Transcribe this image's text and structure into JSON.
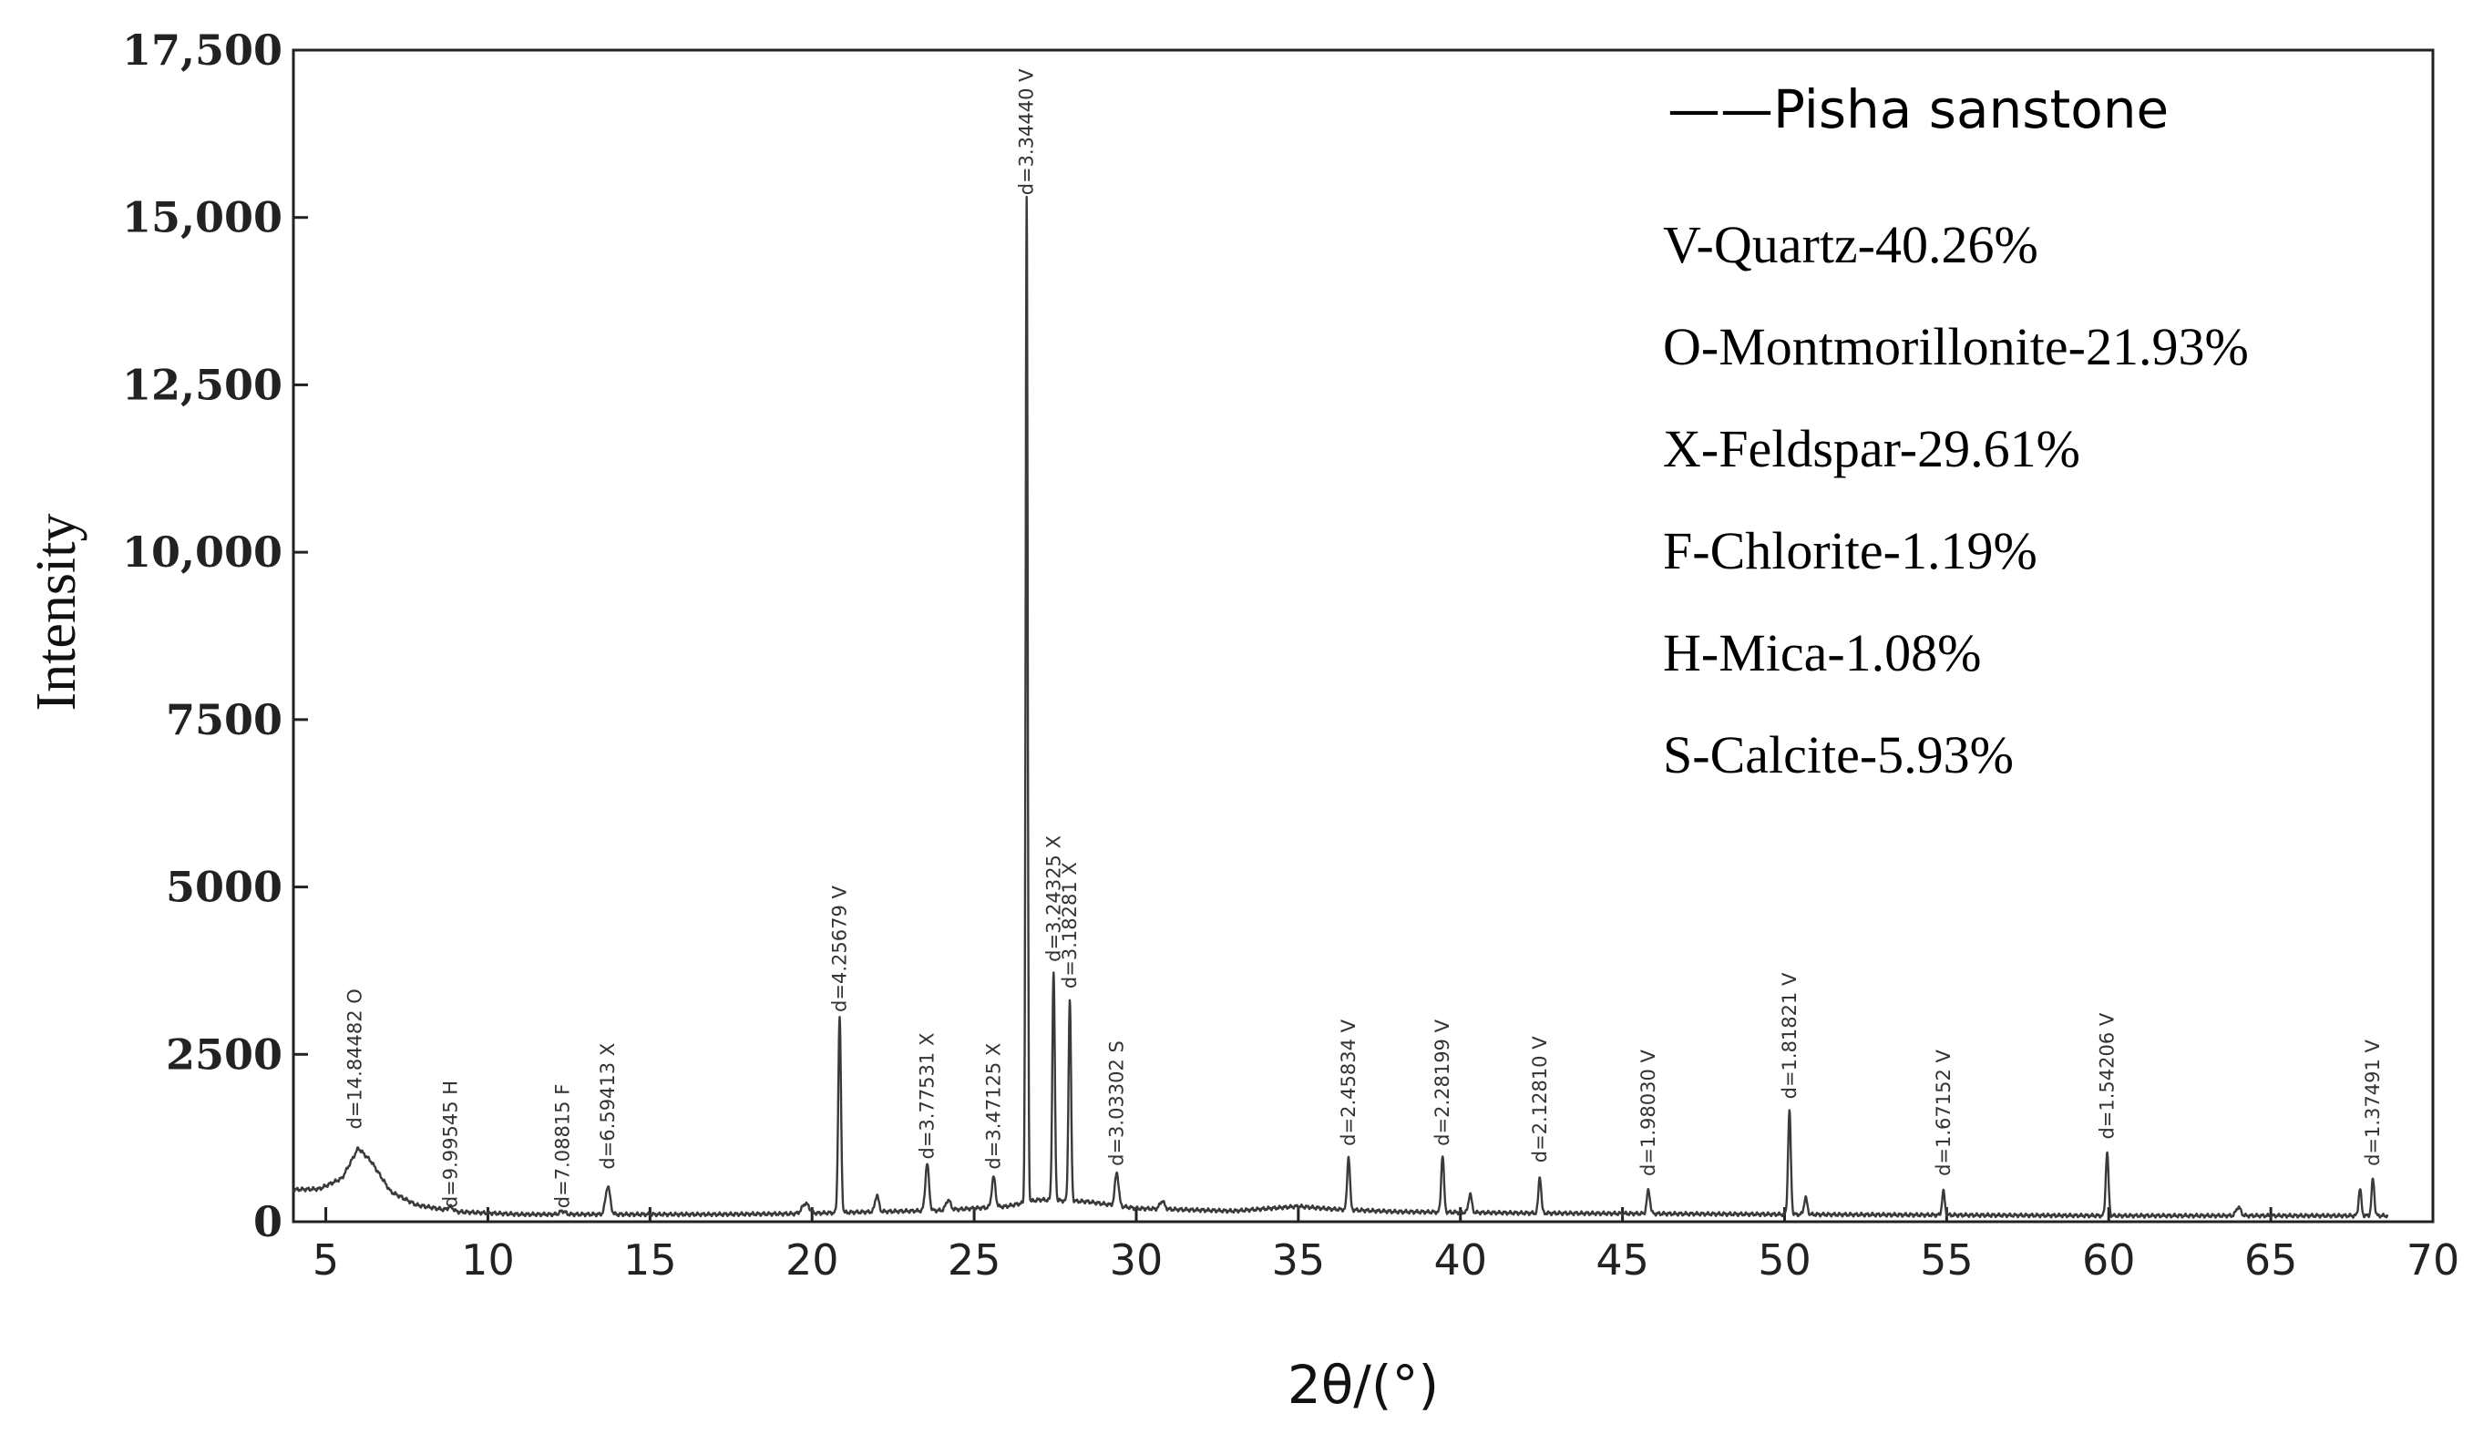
{
  "chart_data": {
    "type": "line",
    "xlabel": "2θ/(°)",
    "ylabel": "Intensity",
    "xlim": [
      4,
      70
    ],
    "ylim": [
      0,
      17500
    ],
    "x_ticks": [
      5,
      10,
      15,
      20,
      25,
      30,
      35,
      40,
      45,
      50,
      55,
      60,
      65,
      70
    ],
    "x_tick_labels": [
      "5",
      "10",
      "15",
      "20",
      "25",
      "30",
      "35",
      "40",
      "45",
      "50",
      "55",
      "60",
      "65",
      "70"
    ],
    "y_ticks": [
      0,
      2500,
      5000,
      7500,
      10000,
      12500,
      15000,
      17500
    ],
    "y_tick_labels": [
      "0",
      "2500",
      "5000",
      "7500",
      "10,000",
      "12,500",
      "15,000",
      "17,500"
    ],
    "series": [
      {
        "name": "Pisha sanstone",
        "color": "#3a3a3a",
        "baseline": [
          [
            4.0,
            480
          ],
          [
            4.8,
            490
          ],
          [
            5.5,
            650
          ],
          [
            6.0,
            1100
          ],
          [
            6.4,
            900
          ],
          [
            7.0,
            450
          ],
          [
            7.8,
            250
          ],
          [
            9.0,
            150
          ],
          [
            11.0,
            110
          ],
          [
            14.0,
            110
          ],
          [
            17.0,
            110
          ],
          [
            19.5,
            120
          ],
          [
            22.0,
            150
          ],
          [
            24.0,
            170
          ],
          [
            26.0,
            230
          ],
          [
            27.0,
            330
          ],
          [
            28.5,
            300
          ],
          [
            30.0,
            200
          ],
          [
            33.0,
            160
          ],
          [
            35.0,
            230
          ],
          [
            36.0,
            190
          ],
          [
            38.0,
            150
          ],
          [
            42.0,
            130
          ],
          [
            46.0,
            120
          ],
          [
            50.0,
            110
          ],
          [
            55.0,
            100
          ],
          [
            60.0,
            90
          ],
          [
            65.0,
            90
          ],
          [
            68.5,
            90
          ],
          [
            70.0,
            90
          ]
        ],
        "peaks": [
          {
            "x": 8.85,
            "y": 60,
            "w": 0.12
          },
          {
            "x": 12.3,
            "y": 50,
            "w": 0.12
          },
          {
            "x": 13.7,
            "y": 420,
            "w": 0.1
          },
          {
            "x": 19.8,
            "y": 150,
            "w": 0.15
          },
          {
            "x": 20.85,
            "y": 2900,
            "w": 0.06
          },
          {
            "x": 22.0,
            "y": 250,
            "w": 0.08
          },
          {
            "x": 23.55,
            "y": 700,
            "w": 0.08
          },
          {
            "x": 24.2,
            "y": 150,
            "w": 0.1
          },
          {
            "x": 25.6,
            "y": 450,
            "w": 0.08
          },
          {
            "x": 26.62,
            "y": 15000,
            "w": 0.045
          },
          {
            "x": 27.45,
            "y": 3400,
            "w": 0.055
          },
          {
            "x": 27.95,
            "y": 3000,
            "w": 0.055
          },
          {
            "x": 29.4,
            "y": 500,
            "w": 0.08
          },
          {
            "x": 30.8,
            "y": 120,
            "w": 0.1
          },
          {
            "x": 36.55,
            "y": 800,
            "w": 0.06
          },
          {
            "x": 39.45,
            "y": 850,
            "w": 0.06
          },
          {
            "x": 40.3,
            "y": 280,
            "w": 0.07
          },
          {
            "x": 42.45,
            "y": 550,
            "w": 0.06
          },
          {
            "x": 45.8,
            "y": 350,
            "w": 0.07
          },
          {
            "x": 50.15,
            "y": 1550,
            "w": 0.06
          },
          {
            "x": 50.65,
            "y": 250,
            "w": 0.07
          },
          {
            "x": 54.9,
            "y": 350,
            "w": 0.06
          },
          {
            "x": 59.95,
            "y": 950,
            "w": 0.06
          },
          {
            "x": 64.0,
            "y": 130,
            "w": 0.1
          },
          {
            "x": 67.75,
            "y": 400,
            "w": 0.06
          },
          {
            "x": 68.15,
            "y": 550,
            "w": 0.06
          }
        ]
      }
    ],
    "annotations": [
      {
        "text": "d=14.84482 O",
        "x": 5.9,
        "y": 1300
      },
      {
        "text": "d=9.99545 H",
        "x": 8.85,
        "y": 120
      },
      {
        "text": "d=7.08815 F",
        "x": 12.3,
        "y": 120
      },
      {
        "text": "d=6.59413 X",
        "x": 13.7,
        "y": 700
      },
      {
        "text": "d=4.25679 V",
        "x": 20.85,
        "y": 3050
      },
      {
        "text": "d=3.77531 X",
        "x": 23.55,
        "y": 850
      },
      {
        "text": "d=3.47125 X",
        "x": 25.6,
        "y": 700
      },
      {
        "text": "d=3.34440 V",
        "x": 26.62,
        "y": 15250
      },
      {
        "text": "d=3.24325 X",
        "x": 27.45,
        "y": 3800
      },
      {
        "text": "d=3.18281 X",
        "x": 27.95,
        "y": 3400
      },
      {
        "text": "d=3.03302 S",
        "x": 29.4,
        "y": 750
      },
      {
        "text": "d=2.45834 V",
        "x": 36.55,
        "y": 1050
      },
      {
        "text": "d=2.28199 V",
        "x": 39.45,
        "y": 1050
      },
      {
        "text": "d=2.12810 V",
        "x": 42.45,
        "y": 800
      },
      {
        "text": "d=1.98030 V",
        "x": 45.8,
        "y": 600
      },
      {
        "text": "d=1.81821 V",
        "x": 50.15,
        "y": 1750
      },
      {
        "text": "d=1.67152 V",
        "x": 54.9,
        "y": 600
      },
      {
        "text": "d=1.54206 V",
        "x": 59.95,
        "y": 1150
      },
      {
        "text": "d=1.37491 V",
        "x": 68.15,
        "y": 750
      }
    ],
    "legend": {
      "position": "top-right",
      "series_label": "——Pisha sanstone",
      "items": [
        "V-Quartz-40.26%",
        "O-Montmorillonite-21.93%",
        "X-Feldspar-29.61%",
        "F-Chlorite-1.19%",
        "H-Mica-1.08%",
        "S-Calcite-5.93%"
      ]
    }
  }
}
